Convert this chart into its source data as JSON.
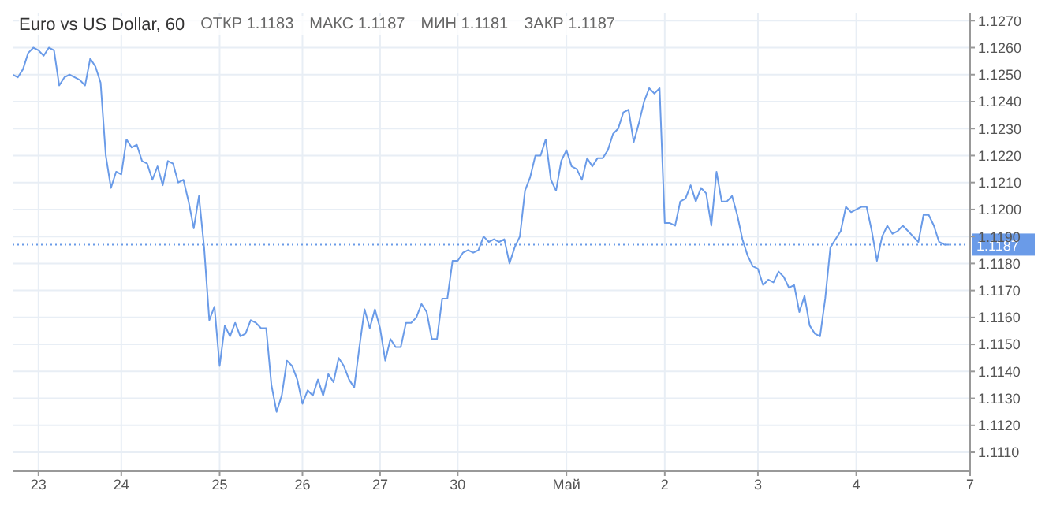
{
  "chart_data": {
    "type": "line",
    "title": "Euro vs US Dollar, 60",
    "annotations": [
      "ОТКР 1.1183",
      "МАКС 1.1187",
      "МИН 1.1181",
      "ЗАКР 1.1187"
    ],
    "series": [
      {
        "color": "#6a9be8",
        "values": [
          1.125,
          1.1249,
          1.1252,
          1.1258,
          1.126,
          1.1259,
          1.1257,
          1.126,
          1.1259,
          1.1246,
          1.1249,
          1.125,
          1.1249,
          1.1248,
          1.1246,
          1.1256,
          1.1253,
          1.1247,
          1.122,
          1.1208,
          1.1214,
          1.1213,
          1.1226,
          1.1223,
          1.1224,
          1.1218,
          1.1217,
          1.1211,
          1.1216,
          1.1209,
          1.1218,
          1.1217,
          1.121,
          1.1211,
          1.1203,
          1.1193,
          1.1205,
          1.1186,
          1.1159,
          1.1164,
          1.1142,
          1.1157,
          1.1153,
          1.1158,
          1.1153,
          1.1154,
          1.1159,
          1.1158,
          1.1156,
          1.1156,
          1.1135,
          1.1125,
          1.1131,
          1.1144,
          1.1142,
          1.1137,
          1.1128,
          1.1133,
          1.1131,
          1.1137,
          1.1131,
          1.1139,
          1.1136,
          1.1145,
          1.1142,
          1.1137,
          1.1134,
          1.1149,
          1.1163,
          1.1156,
          1.1163,
          1.1156,
          1.1144,
          1.1152,
          1.1149,
          1.1149,
          1.1158,
          1.1158,
          1.116,
          1.1165,
          1.1162,
          1.1152,
          1.1152,
          1.1167,
          1.1167,
          1.1181,
          1.1181,
          1.1184,
          1.1185,
          1.1184,
          1.1185,
          1.119,
          1.1188,
          1.1189,
          1.1188,
          1.1189,
          1.118,
          1.1186,
          1.119,
          1.1207,
          1.1212,
          1.122,
          1.122,
          1.1226,
          1.1211,
          1.1207,
          1.1218,
          1.1222,
          1.1216,
          1.1215,
          1.1211,
          1.1219,
          1.1216,
          1.1219,
          1.1219,
          1.1222,
          1.1228,
          1.123,
          1.1236,
          1.1237,
          1.1225,
          1.1232,
          1.124,
          1.1245,
          1.1243,
          1.1245,
          1.1195,
          1.1195,
          1.1194,
          1.1203,
          1.1204,
          1.1209,
          1.1203,
          1.1208,
          1.1206,
          1.1194,
          1.1214,
          1.1203,
          1.1203,
          1.1205,
          1.1198,
          1.1189,
          1.1183,
          1.1179,
          1.1178,
          1.1172,
          1.1174,
          1.1173,
          1.1177,
          1.1175,
          1.1171,
          1.1172,
          1.1162,
          1.1168,
          1.1157,
          1.1154,
          1.1153,
          1.1167,
          1.1186,
          1.1189,
          1.1192,
          1.1201,
          1.1199,
          1.12,
          1.1201,
          1.1201,
          1.1192,
          1.1181,
          1.119,
          1.1194,
          1.1191,
          1.1192,
          1.1194,
          1.1192,
          1.119,
          1.1188,
          1.1198,
          1.1198,
          1.1194,
          1.1188,
          1.1187,
          1.1187,
          null,
          null,
          null,
          null
        ]
      }
    ],
    "categories": [
      null,
      null,
      null,
      null,
      null,
      "23",
      null,
      null,
      null,
      null,
      null,
      null,
      null,
      null,
      null,
      null,
      null,
      null,
      null,
      null,
      null,
      "24",
      null,
      null,
      null,
      null,
      null,
      null,
      null,
      null,
      null,
      null,
      null,
      null,
      null,
      null,
      null,
      null,
      null,
      null,
      "25",
      null,
      null,
      null,
      null,
      null,
      null,
      null,
      null,
      null,
      null,
      null,
      null,
      null,
      null,
      null,
      "26",
      null,
      null,
      null,
      null,
      null,
      null,
      null,
      null,
      null,
      null,
      null,
      null,
      null,
      null,
      "27",
      null,
      null,
      null,
      null,
      null,
      null,
      null,
      null,
      null,
      null,
      null,
      null,
      null,
      null,
      "30",
      null,
      null,
      null,
      null,
      null,
      null,
      null,
      null,
      null,
      null,
      null,
      null,
      null,
      null,
      null,
      null,
      null,
      null,
      null,
      null,
      "Май",
      null,
      null,
      null,
      null,
      null,
      null,
      null,
      null,
      null,
      null,
      null,
      null,
      null,
      null,
      null,
      null,
      null,
      null,
      "2",
      null,
      null,
      null,
      null,
      null,
      null,
      null,
      null,
      null,
      null,
      null,
      null,
      null,
      null,
      null,
      null,
      null,
      "3",
      null,
      null,
      null,
      null,
      null,
      null,
      null,
      null,
      null,
      null,
      null,
      null,
      null,
      null,
      null,
      null,
      null,
      null,
      "4",
      null,
      null,
      null,
      null,
      null,
      null,
      null,
      null,
      null,
      null,
      null,
      null,
      null,
      null,
      null,
      null,
      null,
      null,
      null,
      null,
      null,
      "7"
    ],
    "ylim": [
      1.1103,
      1.1273
    ],
    "yticks": [
      {
        "value": 1.111,
        "label": "1.1110"
      },
      {
        "value": 1.112,
        "label": "1.1120"
      },
      {
        "value": 1.113,
        "label": "1.1130"
      },
      {
        "value": 1.114,
        "label": "1.1140"
      },
      {
        "value": 1.115,
        "label": "1.1150"
      },
      {
        "value": 1.116,
        "label": "1.1160"
      },
      {
        "value": 1.117,
        "label": "1.1170"
      },
      {
        "value": 1.118,
        "label": "1.1180"
      },
      {
        "value": 1.119,
        "label": "1.1190"
      },
      {
        "value": 1.12,
        "label": "1.1200"
      },
      {
        "value": 1.121,
        "label": "1.1210"
      },
      {
        "value": 1.122,
        "label": "1.1220"
      },
      {
        "value": 1.123,
        "label": "1.1230"
      },
      {
        "value": 1.124,
        "label": "1.1240"
      },
      {
        "value": 1.125,
        "label": "1.1250"
      },
      {
        "value": 1.126,
        "label": "1.1260"
      },
      {
        "value": 1.127,
        "label": "1.1270"
      }
    ],
    "ref_lines": [
      {
        "axis": "y",
        "value": 1.1187,
        "label": "1.1187",
        "color": "#6a9be8",
        "line_style": "dotted"
      }
    ],
    "grid": true,
    "legend": false,
    "marker": "none",
    "line_style": "solid"
  }
}
